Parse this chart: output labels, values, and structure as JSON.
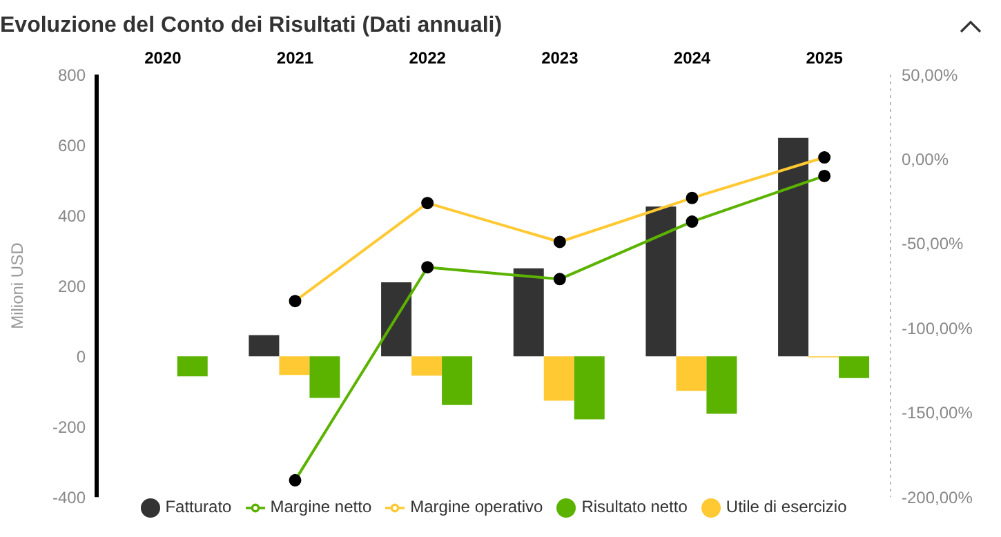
{
  "chart_data": {
    "type": "bar",
    "title": "Evoluzione del Conto dei Risultati (Dati annuali)",
    "ylabel": "Milioni USD",
    "categories": [
      "2020",
      "2021",
      "2022",
      "2023",
      "2024",
      "2025"
    ],
    "series": [
      {
        "name": "Fatturato",
        "color": "#333333",
        "values": [
          null,
          60,
          210,
          250,
          425,
          620
        ]
      },
      {
        "name": "Utile di esercizio",
        "color": "#ffc933",
        "values": [
          null,
          -53,
          -55,
          -126,
          -98,
          -3
        ]
      },
      {
        "name": "Risultato netto",
        "color": "#5bb300",
        "values": [
          -57,
          -118,
          -138,
          -179,
          -163,
          -62
        ]
      },
      {
        "name": "Margine netto",
        "type": "line",
        "axis": "y2",
        "color": "#5bb300",
        "values": [
          null,
          -190,
          -64,
          -71,
          -37,
          -10
        ]
      },
      {
        "name": "Margine operativo",
        "type": "line",
        "axis": "y2",
        "color": "#ffc933",
        "values": [
          null,
          -84,
          -26,
          -49,
          -23,
          1
        ]
      }
    ],
    "ylim": [
      -400,
      800
    ],
    "yticks": [
      -400,
      -200,
      0,
      200,
      400,
      600,
      800
    ],
    "y2lim": [
      -200,
      50
    ],
    "y2ticks": [
      {
        "value": -200,
        "label": "-200,00%"
      },
      {
        "value": -150,
        "label": "-150,00%"
      },
      {
        "value": -100,
        "label": "-100,00%"
      },
      {
        "value": -50,
        "label": "-50,00%"
      },
      {
        "value": 0,
        "label": "0,00%"
      },
      {
        "value": 50,
        "label": "50,00%"
      }
    ],
    "marker": "circle",
    "legend": "bottom",
    "grid": false
  }
}
